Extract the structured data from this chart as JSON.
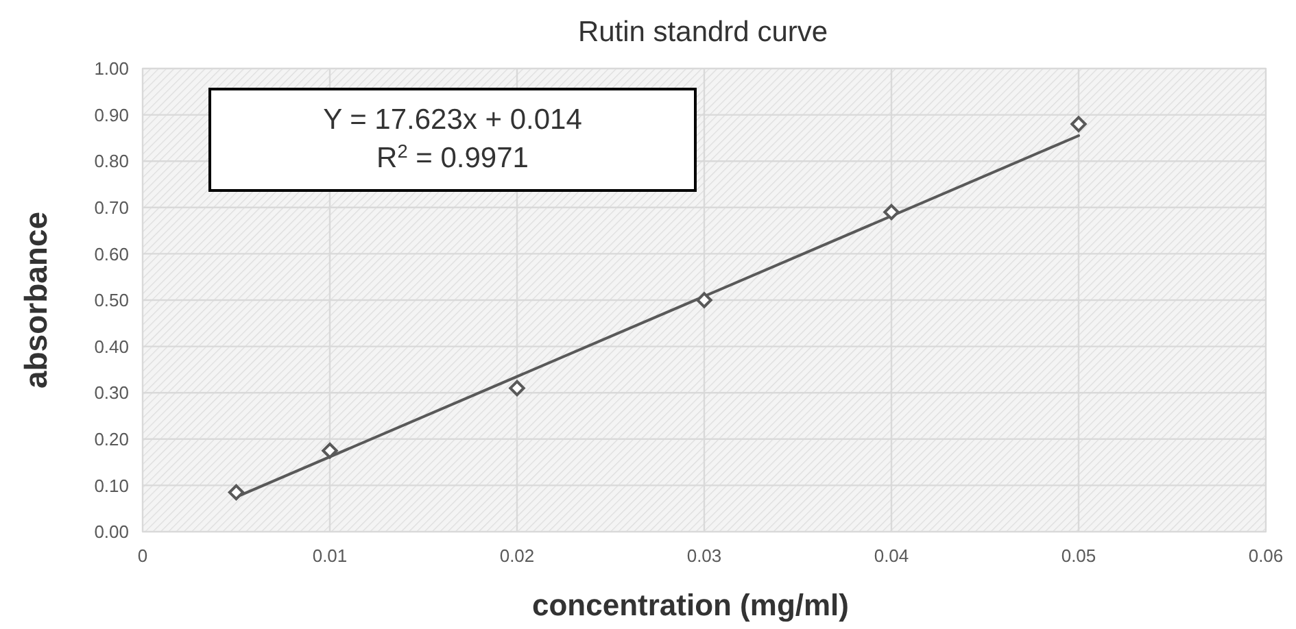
{
  "chart_data": {
    "type": "scatter",
    "title": "Rutin standrd curve",
    "xlabel": "concentration (mg/ml)",
    "ylabel": "absorbance",
    "annotations": [
      "Y = 17.623x + 0.014",
      "R$^{2}$ = 0.9971"
    ],
    "x": [
      0.005,
      0.01,
      0.02,
      0.03,
      0.04,
      0.05
    ],
    "series": [
      {
        "type": "scatter",
        "color": "#595959",
        "marker": "diamond",
        "values": [
          0.085,
          0.175,
          0.31,
          0.5,
          0.69,
          0.88
        ]
      },
      {
        "type": "line",
        "color": "#595959",
        "marker": "none",
        "line_style": "solid",
        "x": [
          0.005,
          0.05
        ],
        "values": [
          0.075,
          0.855
        ]
      }
    ],
    "xlim": [
      0,
      0.06
    ],
    "xticks": [
      0,
      0.01,
      0.02,
      0.03,
      0.04,
      0.05,
      0.06
    ],
    "ylim": [
      0,
      1
    ],
    "yticks": [
      {
        "value": 0,
        "label": "0.00"
      },
      {
        "value": 0.1,
        "label": "0.10"
      },
      {
        "value": 0.2,
        "label": "0.20"
      },
      {
        "value": 0.3,
        "label": "0.30"
      },
      {
        "value": 0.4,
        "label": "0.40"
      },
      {
        "value": 0.5,
        "label": "0.50"
      },
      {
        "value": 0.6,
        "label": "0.60"
      },
      {
        "value": 0.7,
        "label": "0.70"
      },
      {
        "value": 0.8,
        "label": "0.80"
      },
      {
        "value": 0.9,
        "label": "0.90"
      },
      {
        "value": 1,
        "label": "1.00"
      }
    ],
    "grid": true
  }
}
